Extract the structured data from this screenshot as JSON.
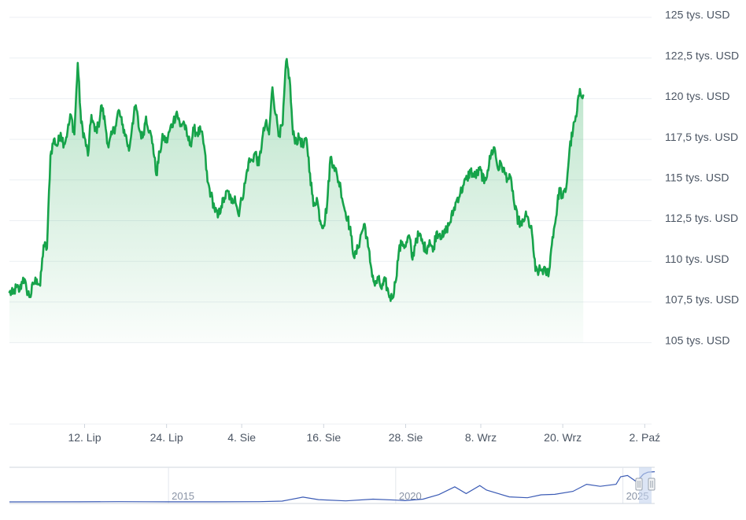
{
  "chart_data": {
    "type": "area",
    "title": "",
    "xlabel": "",
    "ylabel": "",
    "ylim": [
      100000,
      125000
    ],
    "y_ticks": [
      {
        "value": 105000,
        "label": "105 tys. USD"
      },
      {
        "value": 107500,
        "label": "107,5 tys. USD"
      },
      {
        "value": 110000,
        "label": "110 tys. USD"
      },
      {
        "value": 112500,
        "label": "112,5 tys. USD"
      },
      {
        "value": 115000,
        "label": "115 tys. USD"
      },
      {
        "value": 117500,
        "label": "117,5 tys. USD"
      },
      {
        "value": 120000,
        "label": "120 tys. USD"
      },
      {
        "value": 122500,
        "label": "122,5 tys. USD"
      },
      {
        "value": 125000,
        "label": "125 tys. USD"
      }
    ],
    "x_ticks": [
      {
        "day": 11,
        "label": "12. Lip"
      },
      {
        "day": 23,
        "label": "24. Lip"
      },
      {
        "day": 34,
        "label": "4. Sie"
      },
      {
        "day": 46,
        "label": "16. Sie"
      },
      {
        "day": 58,
        "label": "28. Sie"
      },
      {
        "day": 69,
        "label": "8. Wrz"
      },
      {
        "day": 81,
        "label": "20. Wrz"
      },
      {
        "day": 93,
        "label": "2. Paź"
      }
    ],
    "x_range_days": [
      0,
      94
    ],
    "grid": true,
    "line_color": "#16a34a",
    "area_color": "#16a34a",
    "series": [
      {
        "values": [
          [
            0,
            108100
          ],
          [
            0.5,
            108000
          ],
          [
            1.0,
            108400
          ],
          [
            1.5,
            108200
          ],
          [
            2.0,
            109000
          ],
          [
            2.5,
            108300
          ],
          [
            3.0,
            107800
          ],
          [
            3.5,
            108600
          ],
          [
            4.0,
            108900
          ],
          [
            4.5,
            108500
          ],
          [
            5.0,
            111000
          ],
          [
            5.5,
            110800
          ],
          [
            6.0,
            116500
          ],
          [
            6.5,
            117500
          ],
          [
            7.0,
            117100
          ],
          [
            7.5,
            117900
          ],
          [
            8.0,
            117200
          ],
          [
            8.5,
            118000
          ],
          [
            9.0,
            119000
          ],
          [
            9.5,
            117800
          ],
          [
            10.0,
            122200
          ],
          [
            10.5,
            118500
          ],
          [
            11.0,
            117600
          ],
          [
            11.5,
            116500
          ],
          [
            12.0,
            119000
          ],
          [
            12.5,
            118000
          ],
          [
            13.0,
            118300
          ],
          [
            13.5,
            119600
          ],
          [
            14.0,
            118500
          ],
          [
            14.5,
            117000
          ],
          [
            15.0,
            117800
          ],
          [
            15.5,
            118300
          ],
          [
            16.0,
            119300
          ],
          [
            16.5,
            118400
          ],
          [
            17.0,
            117800
          ],
          [
            17.5,
            116800
          ],
          [
            18.0,
            118500
          ],
          [
            18.5,
            119600
          ],
          [
            19.0,
            118100
          ],
          [
            19.5,
            117600
          ],
          [
            20.0,
            118900
          ],
          [
            20.5,
            118000
          ],
          [
            21.0,
            117200
          ],
          [
            21.5,
            115300
          ],
          [
            22.0,
            116700
          ],
          [
            22.5,
            117700
          ],
          [
            23.0,
            117300
          ],
          [
            23.5,
            118100
          ],
          [
            24.0,
            118600
          ],
          [
            24.5,
            119200
          ],
          [
            25.0,
            118300
          ],
          [
            25.5,
            118600
          ],
          [
            26.0,
            117700
          ],
          [
            26.5,
            117200
          ],
          [
            27.0,
            118100
          ],
          [
            27.5,
            117900
          ],
          [
            28.0,
            118000
          ],
          [
            28.5,
            117100
          ],
          [
            29.0,
            114900
          ],
          [
            29.5,
            114100
          ],
          [
            30.0,
            113300
          ],
          [
            30.5,
            112700
          ],
          [
            31.0,
            113400
          ],
          [
            31.5,
            113900
          ],
          [
            32.0,
            114300
          ],
          [
            32.5,
            113600
          ],
          [
            33.0,
            114000
          ],
          [
            33.5,
            112900
          ],
          [
            34.0,
            113800
          ],
          [
            34.5,
            114800
          ],
          [
            35.0,
            116100
          ],
          [
            35.5,
            116200
          ],
          [
            36.0,
            116700
          ],
          [
            36.5,
            115900
          ],
          [
            37.0,
            117500
          ],
          [
            37.5,
            118500
          ],
          [
            38.0,
            117800
          ],
          [
            38.5,
            120700
          ],
          [
            39.0,
            119000
          ],
          [
            39.5,
            117800
          ],
          [
            40.0,
            118400
          ],
          [
            40.5,
            122300
          ],
          [
            41.0,
            121300
          ],
          [
            41.5,
            117800
          ],
          [
            42.0,
            117400
          ],
          [
            42.5,
            117600
          ],
          [
            43.0,
            117000
          ],
          [
            43.5,
            117500
          ],
          [
            44.0,
            115400
          ],
          [
            44.5,
            113400
          ],
          [
            45.0,
            113900
          ],
          [
            45.5,
            112500
          ],
          [
            46.0,
            112200
          ],
          [
            46.5,
            113500
          ],
          [
            47.0,
            116400
          ],
          [
            47.5,
            115900
          ],
          [
            48.0,
            115200
          ],
          [
            48.5,
            114500
          ],
          [
            49.0,
            113300
          ],
          [
            49.5,
            112700
          ],
          [
            50.0,
            111600
          ],
          [
            50.5,
            110200
          ],
          [
            51.0,
            110800
          ],
          [
            51.5,
            111700
          ],
          [
            52.0,
            112300
          ],
          [
            52.5,
            110900
          ],
          [
            53.0,
            109500
          ],
          [
            53.5,
            108500
          ],
          [
            54.0,
            108900
          ],
          [
            54.5,
            108300
          ],
          [
            55.0,
            108800
          ],
          [
            55.5,
            108000
          ],
          [
            56.0,
            107700
          ],
          [
            56.5,
            108700
          ],
          [
            57.0,
            110600
          ],
          [
            57.5,
            111200
          ],
          [
            58.0,
            110900
          ],
          [
            58.5,
            111600
          ],
          [
            59.0,
            110100
          ],
          [
            59.5,
            111400
          ],
          [
            60.0,
            111600
          ],
          [
            60.5,
            111100
          ],
          [
            61.0,
            110700
          ],
          [
            61.5,
            111300
          ],
          [
            62.0,
            110600
          ],
          [
            62.5,
            111800
          ],
          [
            63.0,
            111700
          ],
          [
            63.5,
            111500
          ],
          [
            64.0,
            112000
          ],
          [
            64.5,
            112400
          ],
          [
            65.0,
            113100
          ],
          [
            65.5,
            113800
          ],
          [
            66.0,
            114200
          ],
          [
            66.5,
            114700
          ],
          [
            67.0,
            115100
          ],
          [
            67.5,
            115600
          ],
          [
            68.0,
            115200
          ],
          [
            68.5,
            115400
          ],
          [
            69.0,
            115600
          ],
          [
            69.5,
            114800
          ],
          [
            70.0,
            115600
          ],
          [
            70.5,
            116600
          ],
          [
            71.0,
            117000
          ],
          [
            71.5,
            115700
          ],
          [
            72.0,
            116000
          ],
          [
            72.5,
            115400
          ],
          [
            73.0,
            115100
          ],
          [
            73.5,
            114900
          ],
          [
            74.0,
            113200
          ],
          [
            74.5,
            112500
          ],
          [
            75.0,
            112200
          ],
          [
            75.5,
            112800
          ],
          [
            76.0,
            112500
          ],
          [
            76.5,
            111700
          ],
          [
            77.0,
            109400
          ],
          [
            77.5,
            109400
          ],
          [
            78.0,
            109500
          ],
          [
            78.5,
            109300
          ],
          [
            79.0,
            109400
          ],
          [
            79.5,
            111500
          ],
          [
            80.0,
            112700
          ],
          [
            80.5,
            114500
          ],
          [
            81.0,
            113900
          ],
          [
            81.5,
            114500
          ],
          [
            82.0,
            116900
          ],
          [
            82.5,
            118100
          ],
          [
            83.0,
            118900
          ],
          [
            83.5,
            120600
          ],
          [
            84.0,
            120200
          ]
        ]
      }
    ],
    "navigator": {
      "x_ticks": [
        {
          "value": 2015,
          "label": "2015"
        },
        {
          "value": 2020,
          "label": "2020"
        },
        {
          "value": 2025,
          "label": "2025"
        }
      ],
      "x_range": [
        2011.5,
        2025.7
      ],
      "y_range": [
        0,
        125000
      ],
      "line_color": "#3b5bb5",
      "series": [
        [
          2011.5,
          100
        ],
        [
          2013.0,
          200
        ],
        [
          2013.9,
          1000
        ],
        [
          2014.5,
          600
        ],
        [
          2015.0,
          300
        ],
        [
          2016.0,
          450
        ],
        [
          2017.0,
          1000
        ],
        [
          2017.5,
          3000
        ],
        [
          2017.96,
          19000
        ],
        [
          2018.3,
          9000
        ],
        [
          2018.9,
          4000
        ],
        [
          2019.5,
          11000
        ],
        [
          2020.0,
          7200
        ],
        [
          2020.2,
          5000
        ],
        [
          2020.6,
          11000
        ],
        [
          2020.95,
          29000
        ],
        [
          2021.3,
          60000
        ],
        [
          2021.55,
          33000
        ],
        [
          2021.85,
          65000
        ],
        [
          2022.0,
          47000
        ],
        [
          2022.5,
          20000
        ],
        [
          2022.9,
          16500
        ],
        [
          2023.2,
          28000
        ],
        [
          2023.5,
          30000
        ],
        [
          2023.9,
          42000
        ],
        [
          2024.2,
          70000
        ],
        [
          2024.5,
          62000
        ],
        [
          2024.85,
          70000
        ],
        [
          2024.95,
          100000
        ],
        [
          2025.1,
          105000
        ],
        [
          2025.3,
          80000
        ],
        [
          2025.45,
          110000
        ],
        [
          2025.55,
          118000
        ],
        [
          2025.7,
          120000
        ]
      ]
    }
  }
}
